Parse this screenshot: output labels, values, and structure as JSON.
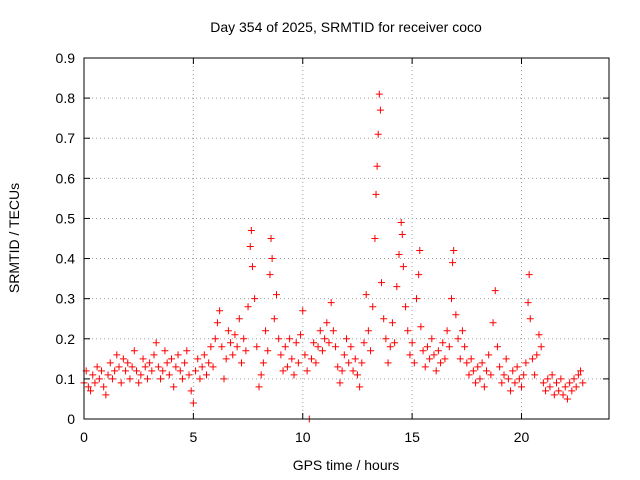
{
  "chart_data": {
    "type": "scatter",
    "title": "Day 354 of 2025, SRMTID for receiver coco",
    "xlabel": "GPS time / hours",
    "ylabel": "SRMTID / TECUs",
    "xlim": [
      0,
      24
    ],
    "ylim": [
      0,
      0.9
    ],
    "xticks": [
      0,
      5,
      10,
      15,
      20
    ],
    "yticks": [
      0,
      0.1,
      0.2,
      0.3,
      0.4,
      0.5,
      0.6,
      0.7,
      0.8,
      0.9
    ],
    "xtick_labels": [
      "0",
      "5",
      "10",
      "15",
      "20"
    ],
    "ytick_labels": [
      "0",
      "0.1",
      "0.2",
      "0.3",
      "0.4",
      "0.5",
      "0.6",
      "0.7",
      "0.8",
      "0.9"
    ],
    "grid": true,
    "marker": "+",
    "color": "#ff0000",
    "series": [
      {
        "name": "SRMTID",
        "points": [
          [
            0.0,
            0.09
          ],
          [
            0.1,
            0.12
          ],
          [
            0.2,
            0.08
          ],
          [
            0.3,
            0.07
          ],
          [
            0.4,
            0.11
          ],
          [
            0.5,
            0.09
          ],
          [
            0.6,
            0.13
          ],
          [
            0.7,
            0.1
          ],
          [
            0.8,
            0.12
          ],
          [
            0.9,
            0.08
          ],
          [
            1.0,
            0.06
          ],
          [
            1.1,
            0.11
          ],
          [
            1.2,
            0.14
          ],
          [
            1.3,
            0.1
          ],
          [
            1.4,
            0.12
          ],
          [
            1.5,
            0.16
          ],
          [
            1.6,
            0.13
          ],
          [
            1.7,
            0.09
          ],
          [
            1.8,
            0.15
          ],
          [
            1.9,
            0.12
          ],
          [
            2.0,
            0.14
          ],
          [
            2.1,
            0.1
          ],
          [
            2.2,
            0.13
          ],
          [
            2.3,
            0.17
          ],
          [
            2.4,
            0.12
          ],
          [
            2.5,
            0.09
          ],
          [
            2.6,
            0.11
          ],
          [
            2.7,
            0.15
          ],
          [
            2.8,
            0.13
          ],
          [
            2.9,
            0.1
          ],
          [
            3.0,
            0.14
          ],
          [
            3.1,
            0.12
          ],
          [
            3.2,
            0.16
          ],
          [
            3.3,
            0.19
          ],
          [
            3.4,
            0.13
          ],
          [
            3.5,
            0.1
          ],
          [
            3.6,
            0.12
          ],
          [
            3.7,
            0.17
          ],
          [
            3.8,
            0.14
          ],
          [
            3.9,
            0.11
          ],
          [
            4.0,
            0.15
          ],
          [
            4.1,
            0.08
          ],
          [
            4.2,
            0.13
          ],
          [
            4.3,
            0.16
          ],
          [
            4.4,
            0.12
          ],
          [
            4.5,
            0.1
          ],
          [
            4.6,
            0.14
          ],
          [
            4.7,
            0.17
          ],
          [
            4.8,
            0.11
          ],
          [
            4.9,
            0.07
          ],
          [
            5.0,
            0.04
          ],
          [
            5.1,
            0.12
          ],
          [
            5.2,
            0.15
          ],
          [
            5.3,
            0.1
          ],
          [
            5.4,
            0.13
          ],
          [
            5.5,
            0.16
          ],
          [
            5.6,
            0.11
          ],
          [
            5.7,
            0.14
          ],
          [
            5.8,
            0.18
          ],
          [
            5.9,
            0.13
          ],
          [
            6.0,
            0.2
          ],
          [
            6.1,
            0.24
          ],
          [
            6.2,
            0.27
          ],
          [
            6.3,
            0.18
          ],
          [
            6.4,
            0.1
          ],
          [
            6.5,
            0.15
          ],
          [
            6.6,
            0.22
          ],
          [
            6.7,
            0.19
          ],
          [
            6.8,
            0.16
          ],
          [
            6.9,
            0.21
          ],
          [
            7.0,
            0.18
          ],
          [
            7.1,
            0.25
          ],
          [
            7.2,
            0.14
          ],
          [
            7.3,
            0.2
          ],
          [
            7.4,
            0.17
          ],
          [
            7.5,
            0.28
          ],
          [
            7.6,
            0.43
          ],
          [
            7.65,
            0.47
          ],
          [
            7.7,
            0.38
          ],
          [
            7.8,
            0.3
          ],
          [
            7.9,
            0.18
          ],
          [
            8.0,
            0.08
          ],
          [
            8.1,
            0.11
          ],
          [
            8.2,
            0.14
          ],
          [
            8.3,
            0.22
          ],
          [
            8.4,
            0.17
          ],
          [
            8.5,
            0.36
          ],
          [
            8.55,
            0.45
          ],
          [
            8.6,
            0.4
          ],
          [
            8.7,
            0.25
          ],
          [
            8.8,
            0.31
          ],
          [
            8.9,
            0.2
          ],
          [
            9.0,
            0.16
          ],
          [
            9.1,
            0.12
          ],
          [
            9.2,
            0.18
          ],
          [
            9.3,
            0.13
          ],
          [
            9.4,
            0.2
          ],
          [
            9.5,
            0.15
          ],
          [
            9.6,
            0.11
          ],
          [
            9.7,
            0.19
          ],
          [
            9.8,
            0.14
          ],
          [
            9.9,
            0.21
          ],
          [
            10.0,
            0.27
          ],
          [
            10.1,
            0.16
          ],
          [
            10.2,
            0.12
          ],
          [
            10.3,
            0.0
          ],
          [
            10.4,
            0.15
          ],
          [
            10.5,
            0.19
          ],
          [
            10.6,
            0.14
          ],
          [
            10.7,
            0.18
          ],
          [
            10.8,
            0.22
          ],
          [
            10.9,
            0.17
          ],
          [
            11.0,
            0.2
          ],
          [
            11.1,
            0.24
          ],
          [
            11.2,
            0.19
          ],
          [
            11.3,
            0.29
          ],
          [
            11.4,
            0.22
          ],
          [
            11.5,
            0.18
          ],
          [
            11.6,
            0.13
          ],
          [
            11.7,
            0.09
          ],
          [
            11.8,
            0.12
          ],
          [
            11.9,
            0.16
          ],
          [
            12.0,
            0.2
          ],
          [
            12.1,
            0.14
          ],
          [
            12.2,
            0.18
          ],
          [
            12.3,
            0.12
          ],
          [
            12.4,
            0.15
          ],
          [
            12.5,
            0.11
          ],
          [
            12.6,
            0.08
          ],
          [
            12.7,
            0.14
          ],
          [
            12.8,
            0.19
          ],
          [
            12.9,
            0.31
          ],
          [
            13.0,
            0.22
          ],
          [
            13.1,
            0.17
          ],
          [
            13.2,
            0.28
          ],
          [
            13.3,
            0.45
          ],
          [
            13.35,
            0.56
          ],
          [
            13.4,
            0.63
          ],
          [
            13.45,
            0.71
          ],
          [
            13.5,
            0.81
          ],
          [
            13.55,
            0.77
          ],
          [
            13.6,
            0.34
          ],
          [
            13.7,
            0.25
          ],
          [
            13.8,
            0.2
          ],
          [
            13.9,
            0.14
          ],
          [
            14.0,
            0.18
          ],
          [
            14.1,
            0.24
          ],
          [
            14.2,
            0.19
          ],
          [
            14.3,
            0.33
          ],
          [
            14.4,
            0.41
          ],
          [
            14.5,
            0.49
          ],
          [
            14.55,
            0.46
          ],
          [
            14.6,
            0.38
          ],
          [
            14.7,
            0.28
          ],
          [
            14.8,
            0.22
          ],
          [
            14.9,
            0.16
          ],
          [
            15.0,
            0.19
          ],
          [
            15.1,
            0.14
          ],
          [
            15.2,
            0.3
          ],
          [
            15.3,
            0.36
          ],
          [
            15.35,
            0.42
          ],
          [
            15.4,
            0.23
          ],
          [
            15.5,
            0.17
          ],
          [
            15.6,
            0.13
          ],
          [
            15.7,
            0.18
          ],
          [
            15.8,
            0.15
          ],
          [
            15.9,
            0.2
          ],
          [
            16.0,
            0.16
          ],
          [
            16.1,
            0.12
          ],
          [
            16.2,
            0.17
          ],
          [
            16.3,
            0.14
          ],
          [
            16.4,
            0.19
          ],
          [
            16.5,
            0.15
          ],
          [
            16.6,
            0.22
          ],
          [
            16.7,
            0.18
          ],
          [
            16.8,
            0.3
          ],
          [
            16.85,
            0.39
          ],
          [
            16.9,
            0.42
          ],
          [
            17.0,
            0.26
          ],
          [
            17.1,
            0.2
          ],
          [
            17.2,
            0.15
          ],
          [
            17.3,
            0.22
          ],
          [
            17.4,
            0.18
          ],
          [
            17.5,
            0.14
          ],
          [
            17.6,
            0.11
          ],
          [
            17.7,
            0.15
          ],
          [
            17.8,
            0.12
          ],
          [
            17.9,
            0.09
          ],
          [
            18.0,
            0.13
          ],
          [
            18.1,
            0.1
          ],
          [
            18.2,
            0.14
          ],
          [
            18.3,
            0.08
          ],
          [
            18.4,
            0.12
          ],
          [
            18.5,
            0.16
          ],
          [
            18.6,
            0.11
          ],
          [
            18.7,
            0.24
          ],
          [
            18.8,
            0.32
          ],
          [
            18.9,
            0.18
          ],
          [
            19.0,
            0.13
          ],
          [
            19.1,
            0.09
          ],
          [
            19.2,
            0.11
          ],
          [
            19.3,
            0.15
          ],
          [
            19.4,
            0.1
          ],
          [
            19.5,
            0.07
          ],
          [
            19.6,
            0.12
          ],
          [
            19.7,
            0.09
          ],
          [
            19.8,
            0.13
          ],
          [
            19.9,
            0.1
          ],
          [
            20.0,
            0.08
          ],
          [
            20.1,
            0.11
          ],
          [
            20.2,
            0.14
          ],
          [
            20.3,
            0.29
          ],
          [
            20.35,
            0.36
          ],
          [
            20.4,
            0.25
          ],
          [
            20.5,
            0.15
          ],
          [
            20.6,
            0.11
          ],
          [
            20.7,
            0.16
          ],
          [
            20.8,
            0.21
          ],
          [
            20.9,
            0.18
          ],
          [
            21.0,
            0.09
          ],
          [
            21.1,
            0.07
          ],
          [
            21.2,
            0.1
          ],
          [
            21.3,
            0.08
          ],
          [
            21.4,
            0.11
          ],
          [
            21.5,
            0.06
          ],
          [
            21.6,
            0.09
          ],
          [
            21.7,
            0.07
          ],
          [
            21.8,
            0.1
          ],
          [
            21.9,
            0.06
          ],
          [
            22.0,
            0.08
          ],
          [
            22.1,
            0.05
          ],
          [
            22.2,
            0.09
          ],
          [
            22.3,
            0.07
          ],
          [
            22.4,
            0.1
          ],
          [
            22.5,
            0.08
          ],
          [
            22.6,
            0.11
          ],
          [
            22.7,
            0.12
          ],
          [
            22.8,
            0.09
          ]
        ]
      }
    ]
  }
}
